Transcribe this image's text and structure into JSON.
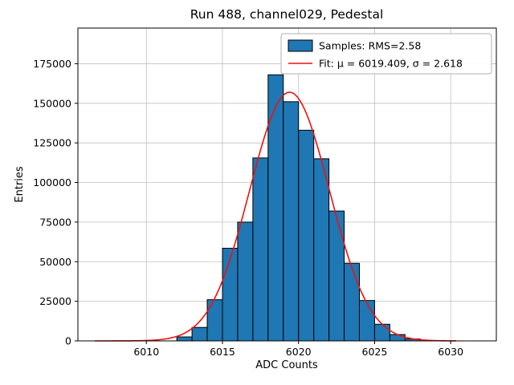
{
  "figure": {
    "title": "Run 488, channel029, Pedestal",
    "xlabel": "ADC Counts",
    "ylabel": "Entries",
    "legend": {
      "samples_label": "Samples: RMS=2.58",
      "fit_label": "Fit: μ = 6019.409, σ = 2.618"
    }
  },
  "chart_data": {
    "type": "bar",
    "subtype": "histogram",
    "title": "Run 488, channel029, Pedestal",
    "xlabel": "ADC Counts",
    "ylabel": "Entries",
    "bin_width": 1,
    "bin_left_edges": [
      6012,
      6013,
      6014,
      6015,
      6016,
      6017,
      6018,
      6019,
      6020,
      6021,
      6022,
      6023,
      6024,
      6025,
      6026,
      6027
    ],
    "values": [
      2500,
      8500,
      26000,
      58500,
      75000,
      115500,
      168000,
      151000,
      133000,
      115000,
      82000,
      49000,
      25500,
      10500,
      4000,
      1200
    ],
    "series_name": "Samples: RMS=2.58",
    "samples_rms": 2.58,
    "fit": {
      "name": "Fit: μ = 6019.409, σ = 2.618",
      "type": "gaussian",
      "mu": 6019.409,
      "sigma": 2.618,
      "amplitude": 157000,
      "draw_range": [
        6006.6,
        6030.4
      ]
    },
    "xlim": [
      6005.5,
      6033.0
    ],
    "ylim": [
      0,
      197500
    ],
    "xticks": [
      6010,
      6015,
      6020,
      6025,
      6030
    ],
    "yticks": [
      0,
      25000,
      50000,
      75000,
      100000,
      125000,
      150000,
      175000
    ],
    "grid": true,
    "legend_position": "upper right",
    "colors": {
      "bar_fill": "#1f77b4",
      "bar_edge": "#000000",
      "fit_line": "#ee1111",
      "grid": "#c0c0c0",
      "frame": "#000000",
      "legend_border": "#b0b0b0",
      "background": "#ffffff"
    }
  }
}
